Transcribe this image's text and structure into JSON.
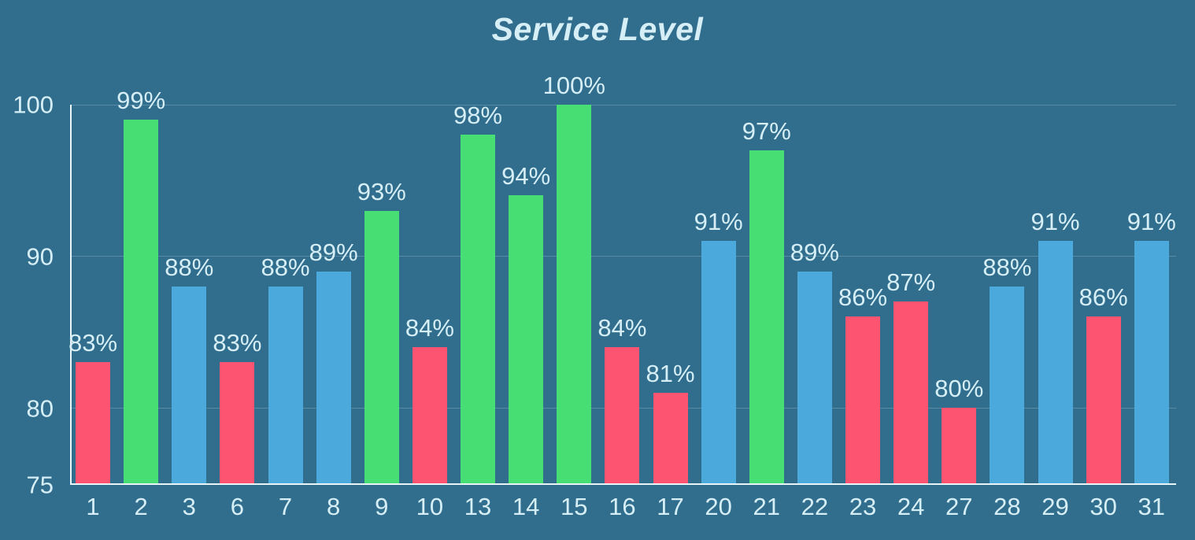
{
  "chart_data": {
    "type": "bar",
    "title": "Service Level",
    "xlabel": "",
    "ylabel": "",
    "ylim": [
      75,
      100
    ],
    "yticks": [
      100,
      90,
      80,
      75
    ],
    "gridline_values": [
      100,
      90,
      80
    ],
    "legend": "none",
    "grid": "horizontal",
    "categories": [
      "1",
      "2",
      "3",
      "6",
      "7",
      "8",
      "9",
      "10",
      "13",
      "14",
      "15",
      "16",
      "17",
      "20",
      "21",
      "22",
      "23",
      "24",
      "27",
      "28",
      "29",
      "30",
      "31"
    ],
    "values": [
      83,
      99,
      88,
      83,
      88,
      89,
      93,
      84,
      98,
      94,
      100,
      84,
      81,
      91,
      97,
      89,
      86,
      87,
      80,
      88,
      91,
      86,
      91
    ],
    "data_labels": [
      "83%",
      "99%",
      "88%",
      "83%",
      "88%",
      "89%",
      "93%",
      "84%",
      "98%",
      "94%",
      "100%",
      "84%",
      "81%",
      "91%",
      "97%",
      "89%",
      "86%",
      "87%",
      "80%",
      "88%",
      "91%",
      "86%",
      "91%"
    ],
    "bar_color_keys": [
      "red",
      "green",
      "blue",
      "red",
      "blue",
      "blue",
      "green",
      "red",
      "green",
      "green",
      "green",
      "red",
      "red",
      "blue",
      "green",
      "blue",
      "red",
      "red",
      "red",
      "blue",
      "blue",
      "red",
      "blue"
    ],
    "palette": {
      "red": "#fc5471",
      "green": "#47df74",
      "blue": "#4ba9db"
    },
    "background_color": "#316e8e",
    "text_color": "#d6eef5",
    "axis_color": "#e9f5f8"
  }
}
